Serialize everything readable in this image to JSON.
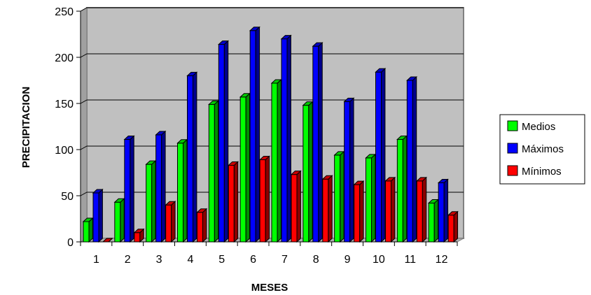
{
  "chart_data": {
    "type": "bar",
    "style": "3d-clustered",
    "title": "",
    "xlabel": "MESES",
    "ylabel": "PRECIPITACION",
    "categories": [
      "1",
      "2",
      "3",
      "4",
      "5",
      "6",
      "7",
      "8",
      "9",
      "10",
      "11",
      "12"
    ],
    "ylim": [
      0,
      250
    ],
    "yticks": [
      0,
      50,
      100,
      150,
      200,
      250
    ],
    "grid": true,
    "legend_position": "right",
    "series": [
      {
        "name": "Medios",
        "color": "#00ff00",
        "values": [
          22,
          43,
          84,
          107,
          149,
          157,
          172,
          148,
          94,
          91,
          111,
          42
        ]
      },
      {
        "name": "Máximos",
        "color": "#0000ff",
        "values": [
          53,
          111,
          116,
          180,
          214,
          229,
          220,
          212,
          152,
          184,
          175,
          64
        ]
      },
      {
        "name": "Mínimos",
        "color": "#ff0000",
        "values": [
          0,
          10,
          40,
          32,
          83,
          89,
          73,
          68,
          62,
          66,
          66,
          29
        ]
      }
    ]
  }
}
